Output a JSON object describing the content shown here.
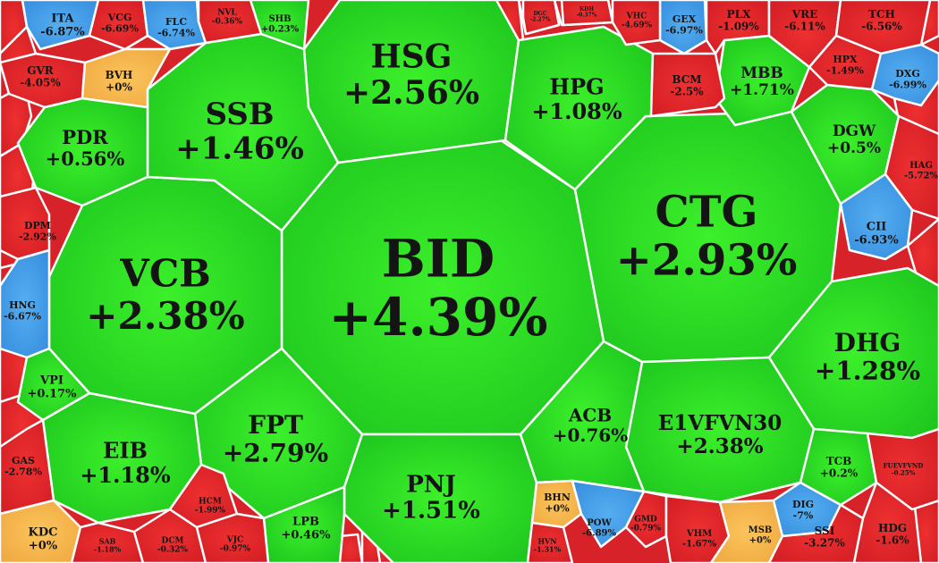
{
  "chart_data": {
    "type": "voronoi-treemap",
    "title": "",
    "colors": {
      "up": "#22cf1f",
      "down": "#e0262b",
      "ref": "#f5b24a",
      "floor": "#3d99e6",
      "border": "#ffffff",
      "text": "#141414"
    },
    "cells": [
      {
        "ticker": "BID",
        "change": "+4.39%",
        "value": 4.39
      },
      {
        "ticker": "CTG",
        "change": "+2.93%",
        "value": 2.93
      },
      {
        "ticker": "VCB",
        "change": "+2.38%",
        "value": 2.38
      },
      {
        "ticker": "HSG",
        "change": "+2.56%",
        "value": 2.56
      },
      {
        "ticker": "SSB",
        "change": "+1.46%",
        "value": 1.46
      },
      {
        "ticker": "HPG",
        "change": "+1.08%",
        "value": 1.08
      },
      {
        "ticker": "DHG",
        "change": "+1.28%",
        "value": 1.28
      },
      {
        "ticker": "FPT",
        "change": "+2.79%",
        "value": 2.79
      },
      {
        "ticker": "PNJ",
        "change": "+1.51%",
        "value": 1.51
      },
      {
        "ticker": "E1VFVN30",
        "change": "+2.38%",
        "value": 2.38
      },
      {
        "ticker": "ACB",
        "change": "+0.76%",
        "value": 0.76
      },
      {
        "ticker": "EIB",
        "change": "+1.18%",
        "value": 1.18
      },
      {
        "ticker": "PDR",
        "change": "+0.56%",
        "value": 0.56
      },
      {
        "ticker": "MBB",
        "change": "+1.71%",
        "value": 1.71
      },
      {
        "ticker": "DGW",
        "change": "+0.5%",
        "value": 0.5
      },
      {
        "ticker": "VPI",
        "change": "+0.17%",
        "value": 0.17
      },
      {
        "ticker": "LPB",
        "change": "+0.46%",
        "value": 0.46
      },
      {
        "ticker": "TCB",
        "change": "+0.2%",
        "value": 0.2
      },
      {
        "ticker": "SHB",
        "change": "+0.23%",
        "value": 0.23
      },
      {
        "ticker": "ITA",
        "change": "-6.87%",
        "value": -6.87
      },
      {
        "ticker": "VCG",
        "change": "-6.69%",
        "value": -6.69
      },
      {
        "ticker": "FLC",
        "change": "-6.74%",
        "value": -6.74
      },
      {
        "ticker": "NVL",
        "change": "-0.36%",
        "value": -0.36
      },
      {
        "ticker": "GVR",
        "change": "-4.05%",
        "value": -4.05
      },
      {
        "ticker": "BVH",
        "change": "+0%",
        "value": 0
      },
      {
        "ticker": "BCM",
        "change": "-2.5%",
        "value": -2.5
      },
      {
        "ticker": "PLX",
        "change": "-1.09%",
        "value": -1.09
      },
      {
        "ticker": "VRE",
        "change": "-6.11%",
        "value": -6.11
      },
      {
        "ticker": "TCH",
        "change": "-6.56%",
        "value": -6.56
      },
      {
        "ticker": "GEX",
        "change": "-6.97%",
        "value": -6.97
      },
      {
        "ticker": "VHC",
        "change": "-4.69%",
        "value": -4.69
      },
      {
        "ticker": "HPX",
        "change": "-1.49%",
        "value": -1.49
      },
      {
        "ticker": "DXG",
        "change": "-6.99%",
        "value": -6.99
      },
      {
        "ticker": "HAG",
        "change": "-5.72%",
        "value": -5.72
      },
      {
        "ticker": "CII",
        "change": "-6.93%",
        "value": -6.93
      },
      {
        "ticker": "DPM",
        "change": "-2.92%",
        "value": -2.92
      },
      {
        "ticker": "HNG",
        "change": "-6.67%",
        "value": -6.67
      },
      {
        "ticker": "GAS",
        "change": "-2.78%",
        "value": -2.78
      },
      {
        "ticker": "KDC",
        "change": "+0%",
        "value": 0
      },
      {
        "ticker": "SAB",
        "change": "-1.18%",
        "value": -1.18
      },
      {
        "ticker": "DCM",
        "change": "-0.32%",
        "value": -0.32
      },
      {
        "ticker": "HCM",
        "change": "-1.99%",
        "value": -1.99
      },
      {
        "ticker": "VJC",
        "change": "-0.97%",
        "value": -0.97
      },
      {
        "ticker": "BHN",
        "change": "+0%",
        "value": 0
      },
      {
        "ticker": "HVN",
        "change": "-1.31%",
        "value": -1.31
      },
      {
        "ticker": "POW",
        "change": "-6.89%",
        "value": -6.89
      },
      {
        "ticker": "GMD",
        "change": "-0.79%",
        "value": -0.79
      },
      {
        "ticker": "VHM",
        "change": "-1.67%",
        "value": -1.67
      },
      {
        "ticker": "MSB",
        "change": "+0%",
        "value": 0
      },
      {
        "ticker": "DIG",
        "change": "-7%",
        "value": -7
      },
      {
        "ticker": "SSI",
        "change": "-3.27%",
        "value": -3.27
      },
      {
        "ticker": "HDG",
        "change": "-1.6%",
        "value": -1.6
      },
      {
        "ticker": "FUEVFVND",
        "change": "-0.25%",
        "value": -0.25
      },
      {
        "ticker": "DGC",
        "change": "-2.27%",
        "value": -2.27
      },
      {
        "ticker": "KDH",
        "change": "-0.37%",
        "value": -0.37
      }
    ]
  }
}
